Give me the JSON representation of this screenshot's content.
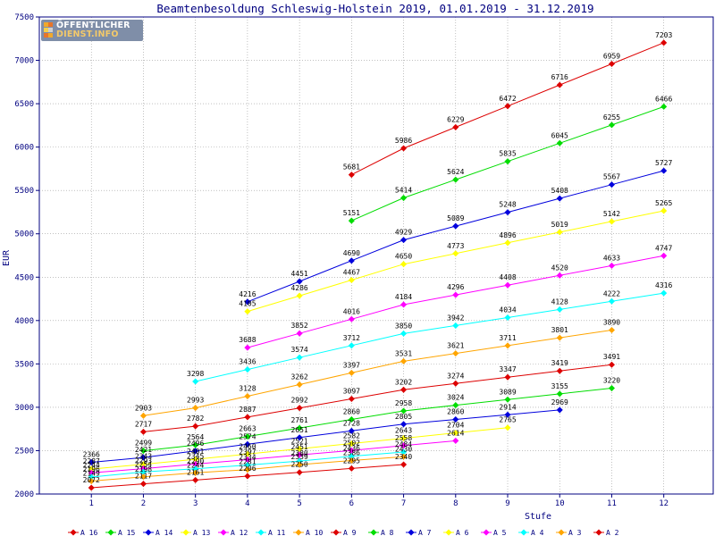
{
  "logo": {
    "line1": "ÖFFENTLICHER",
    "line2": "DIENST.INFO",
    "colors": [
      "#f0a82b",
      "#e8752a",
      "#f6d04a",
      "#cfcfcf"
    ]
  },
  "chart_data": {
    "type": "line",
    "title": "Beamtenbesoldung Schleswig-Holstein 2019, 01.01.2019 - 31.12.2019",
    "xlabel": "Stufe",
    "ylabel": "EUR",
    "xlim": [
      0,
      12.95
    ],
    "ylim": [
      2000,
      7500
    ],
    "xticks": [
      1,
      2,
      3,
      4,
      5,
      6,
      7,
      8,
      9,
      10,
      11,
      12
    ],
    "yticks": [
      2000,
      2500,
      3000,
      3500,
      4000,
      4500,
      5000,
      5500,
      6000,
      6500,
      7000,
      7500
    ],
    "grid": "dotted",
    "legend_position": "bottom",
    "series": [
      {
        "name": "A_16",
        "color": "#dd0000",
        "x": [
          6,
          7,
          8,
          9,
          10,
          11,
          12
        ],
        "values": [
          5681,
          5986,
          6229,
          6472,
          6716,
          6959,
          7203
        ]
      },
      {
        "name": "A_15",
        "color": "#00dd00",
        "x": [
          6,
          7,
          8,
          9,
          10,
          11,
          12
        ],
        "values": [
          5151,
          5414,
          5624,
          5835,
          6045,
          6255,
          6466
        ]
      },
      {
        "name": "A_14",
        "color": "#0000dd",
        "x": [
          4,
          5,
          6,
          7,
          8,
          9,
          10,
          11,
          12
        ],
        "values": [
          4216,
          4451,
          4690,
          4929,
          5089,
          5248,
          5408,
          5567,
          5727
        ]
      },
      {
        "name": "A_13",
        "color": "#ffff00",
        "x": [
          4,
          5,
          6,
          7,
          8,
          9,
          10,
          11,
          12
        ],
        "values": [
          4105,
          4286,
          4467,
          4650,
          4773,
          4896,
          5019,
          5142,
          5265
        ]
      },
      {
        "name": "A_12",
        "color": "#ff00ff",
        "x": [
          4,
          5,
          6,
          7,
          8,
          9,
          10,
          11,
          12
        ],
        "values": [
          3688,
          3852,
          4016,
          4184,
          4296,
          4408,
          4520,
          4633,
          4747
        ]
      },
      {
        "name": "A_11",
        "color": "#00ffff",
        "x": [
          3,
          4,
          5,
          6,
          7,
          8,
          9,
          10,
          11,
          12
        ],
        "values": [
          3298,
          3436,
          3574,
          3712,
          3850,
          3942,
          4034,
          4128,
          4222,
          4316
        ]
      },
      {
        "name": "A_10",
        "color": "#ffa500",
        "x": [
          2,
          3,
          4,
          5,
          6,
          7,
          8,
          9,
          10,
          11
        ],
        "values": [
          2903,
          2993,
          3128,
          3262,
          3397,
          3531,
          3621,
          3711,
          3801,
          3890
        ]
      },
      {
        "name": "A_9",
        "color": "#dd0000",
        "x": [
          2,
          3,
          4,
          5,
          6,
          7,
          8,
          9,
          10,
          11
        ],
        "values": [
          2717,
          2782,
          2887,
          2992,
          3097,
          3202,
          3274,
          3347,
          3419,
          3491
        ]
      },
      {
        "name": "A_8",
        "color": "#00dd00",
        "x": [
          2,
          3,
          4,
          5,
          6,
          7,
          8,
          9,
          10,
          11
        ],
        "values": [
          2499,
          2564,
          2663,
          2761,
          2860,
          2958,
          3024,
          3089,
          3155,
          3220
        ]
      },
      {
        "name": "A_7",
        "color": "#0000dd",
        "x": [
          1,
          2,
          3,
          4,
          5,
          6,
          7,
          8,
          9,
          10
        ],
        "values": [
          2366,
          2421,
          2496,
          2574,
          2651,
          2728,
          2805,
          2860,
          2914,
          2969
        ]
      },
      {
        "name": "A_6",
        "color": "#ffff00",
        "x": [
          1,
          2,
          3,
          4,
          5,
          6,
          7,
          8,
          9
        ],
        "values": [
          2287,
          2343,
          2401,
          2460,
          2521,
          2582,
          2643,
          2704,
          2765
        ]
      },
      {
        "name": "A_5",
        "color": "#ff00ff",
        "x": [
          1,
          2,
          3,
          4,
          5,
          6,
          7,
          8
        ],
        "values": [
          2244,
          2293,
          2345,
          2397,
          2451,
          2502,
          2558,
          2614
        ]
      },
      {
        "name": "A_4",
        "color": "#00ffff",
        "x": [
          1,
          2,
          3,
          4,
          5,
          6,
          7
        ],
        "values": [
          2196,
          2254,
          2290,
          2334,
          2380,
          2436,
          2484
        ]
      },
      {
        "name": "A_3",
        "color": "#ffa500",
        "x": [
          1,
          2,
          3,
          4,
          5,
          6,
          7
        ],
        "values": [
          2149,
          2198,
          2244,
          2281,
          2339,
          2386,
          2430
        ]
      },
      {
        "name": "A_2",
        "color": "#dd0000",
        "x": [
          1,
          2,
          3,
          4,
          5,
          6,
          7
        ],
        "values": [
          2072,
          2117,
          2161,
          2206,
          2250,
          2295,
          2340
        ]
      }
    ]
  }
}
